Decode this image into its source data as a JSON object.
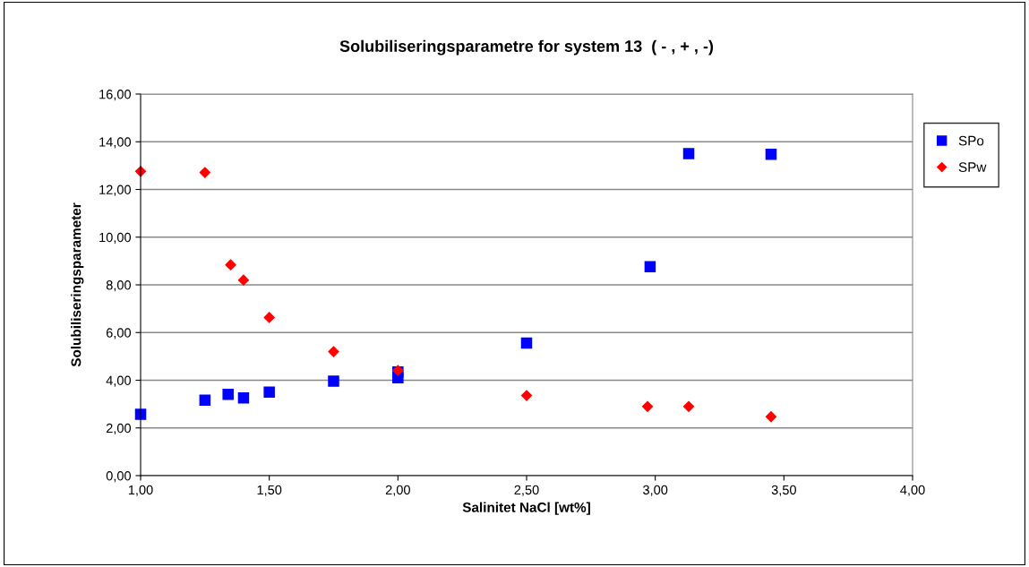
{
  "chart_data": {
    "type": "scatter",
    "title": "Solubiliseringsparametre for system 13  ( - , + , -)",
    "xlabel": "Salinitet NaCl [wt%]",
    "ylabel": "Solubiliseringsparameter",
    "series": [
      {
        "name": "SPo",
        "color": "#0000ff",
        "marker": "square",
        "x": [
          1.0,
          1.25,
          1.34,
          1.4,
          1.5,
          1.75,
          2.0,
          2.0,
          2.5,
          2.98,
          3.13,
          3.45
        ],
        "values": [
          2.57,
          3.16,
          3.41,
          3.26,
          3.5,
          3.96,
          4.1,
          4.35,
          5.56,
          8.76,
          13.5,
          13.47
        ]
      },
      {
        "name": "SPw",
        "color": "#ff0000",
        "marker": "diamond",
        "x": [
          1.0,
          1.25,
          1.35,
          1.4,
          1.5,
          1.75,
          2.0,
          2.5,
          2.97,
          3.13,
          3.45
        ],
        "values": [
          12.76,
          12.71,
          8.84,
          8.2,
          6.63,
          5.2,
          4.41,
          3.36,
          2.9,
          2.9,
          2.47
        ]
      }
    ],
    "xlim": [
      1.0,
      4.0
    ],
    "ylim": [
      0,
      16
    ],
    "xticks": [
      {
        "value": 1.0,
        "label": "1,00"
      },
      {
        "value": 1.5,
        "label": "1,50"
      },
      {
        "value": 2.0,
        "label": "2,00"
      },
      {
        "value": 2.5,
        "label": "2,50"
      },
      {
        "value": 3.0,
        "label": "3,00"
      },
      {
        "value": 3.5,
        "label": "3,50"
      },
      {
        "value": 4.0,
        "label": "4,00"
      }
    ],
    "yticks": [
      {
        "value": 0,
        "label": "0,00"
      },
      {
        "value": 2,
        "label": "2,00"
      },
      {
        "value": 4,
        "label": "4,00"
      },
      {
        "value": 6,
        "label": "6,00"
      },
      {
        "value": 8,
        "label": "8,00"
      },
      {
        "value": 10,
        "label": "10,00"
      },
      {
        "value": 12,
        "label": "12,00"
      },
      {
        "value": 14,
        "label": "14,00"
      },
      {
        "value": 16,
        "label": "16,00"
      }
    ],
    "grid": "y",
    "legend": "right"
  }
}
